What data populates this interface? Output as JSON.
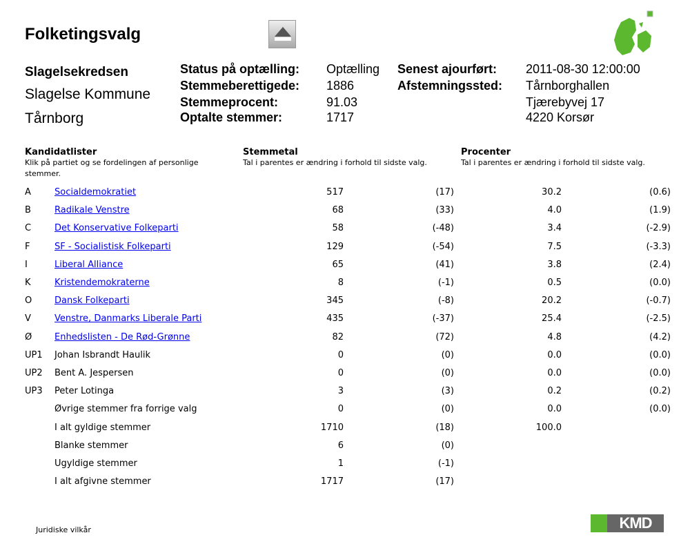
{
  "title": "Folketingsvalg",
  "location": {
    "kreds": "Slagelsekredsen",
    "kommune": "Slagelse Kommune",
    "sted": "Tårnborg"
  },
  "info": {
    "status_label": "Status på optælling:",
    "status_value": "Optælling",
    "eligible_label": "Stemmeberettigede:",
    "eligible_value": "1886",
    "pct_label": "Stemmeprocent:",
    "pct_value": "91.03",
    "counted_label": "Optalte stemmer:",
    "counted_value": "1717",
    "updated_label": "Senest ajourført:",
    "updated_value": "2011-08-30 12:00:00",
    "venue_label": "Afstemningssted:",
    "venue_name": "Tårnborghallen",
    "venue_street": "Tjærebyvej 17",
    "venue_city": "4220 Korsør"
  },
  "table": {
    "h1": "Kandidatlister",
    "h1_sub": "Klik på partiet og se fordelingen af personlige stemmer.",
    "h2": "Stemmetal",
    "h2_sub": "Tal i parentes er ændring i forhold til sidste valg.",
    "h3": "Procenter",
    "h3_sub": "Tal i parentes er ændring i forhold til sidste valg.",
    "rows": [
      {
        "code": "A",
        "name": "Socialdemokratiet",
        "link": true,
        "votes": "517",
        "vdiff": "(17)",
        "pct": "30.2",
        "pdiff": "(0.6)"
      },
      {
        "code": "B",
        "name": "Radikale Venstre",
        "link": true,
        "votes": "68",
        "vdiff": "(33)",
        "pct": "4.0",
        "pdiff": "(1.9)"
      },
      {
        "code": "C",
        "name": "Det Konservative Folkeparti",
        "link": true,
        "votes": "58",
        "vdiff": "(-48)",
        "pct": "3.4",
        "pdiff": "(-2.9)"
      },
      {
        "code": "F",
        "name": "SF - Socialistisk Folkeparti",
        "link": true,
        "votes": "129",
        "vdiff": "(-54)",
        "pct": "7.5",
        "pdiff": "(-3.3)"
      },
      {
        "code": "I",
        "name": "Liberal Alliance",
        "link": true,
        "votes": "65",
        "vdiff": "(41)",
        "pct": "3.8",
        "pdiff": "(2.4)"
      },
      {
        "code": "K",
        "name": "Kristendemokraterne",
        "link": true,
        "votes": "8",
        "vdiff": "(-1)",
        "pct": "0.5",
        "pdiff": "(0.0)"
      },
      {
        "code": "O",
        "name": "Dansk Folkeparti",
        "link": true,
        "votes": "345",
        "vdiff": "(-8)",
        "pct": "20.2",
        "pdiff": "(-0.7)"
      },
      {
        "code": "V",
        "name": "Venstre, Danmarks Liberale Parti",
        "link": true,
        "votes": "435",
        "vdiff": "(-37)",
        "pct": "25.4",
        "pdiff": "(-2.5)"
      },
      {
        "code": "Ø",
        "name": "Enhedslisten - De Rød-Grønne",
        "link": true,
        "votes": "82",
        "vdiff": "(72)",
        "pct": "4.8",
        "pdiff": "(4.2)"
      },
      {
        "code": "UP1",
        "name": "Johan Isbrandt Haulik",
        "link": false,
        "votes": "0",
        "vdiff": "(0)",
        "pct": "0.0",
        "pdiff": "(0.0)"
      },
      {
        "code": "UP2",
        "name": "Bent A. Jespersen",
        "link": false,
        "votes": "0",
        "vdiff": "(0)",
        "pct": "0.0",
        "pdiff": "(0.0)"
      },
      {
        "code": "UP3",
        "name": "Peter Lotinga",
        "link": false,
        "votes": "3",
        "vdiff": "(3)",
        "pct": "0.2",
        "pdiff": "(0.2)"
      },
      {
        "code": "",
        "name": "Øvrige stemmer fra forrige valg",
        "link": false,
        "votes": "0",
        "vdiff": "(0)",
        "pct": "0.0",
        "pdiff": "(0.0)"
      },
      {
        "code": "",
        "name": "I alt gyldige stemmer",
        "link": false,
        "votes": "1710",
        "vdiff": "(18)",
        "pct": "100.0",
        "pdiff": ""
      },
      {
        "code": "",
        "name": "Blanke stemmer",
        "link": false,
        "votes": "6",
        "vdiff": "(0)",
        "pct": "",
        "pdiff": ""
      },
      {
        "code": "",
        "name": "Ugyldige stemmer",
        "link": false,
        "votes": "1",
        "vdiff": "(-1)",
        "pct": "",
        "pdiff": ""
      },
      {
        "code": "",
        "name": "I alt afgivne stemmer",
        "link": false,
        "votes": "1717",
        "vdiff": "(17)",
        "pct": "",
        "pdiff": ""
      }
    ]
  },
  "footer": {
    "legal": "Juridiske vilkår",
    "logo": "KMD"
  },
  "colors": {
    "link": "#0000ee",
    "brand_green": "#5cb82e",
    "logo_gray": "#666666"
  }
}
